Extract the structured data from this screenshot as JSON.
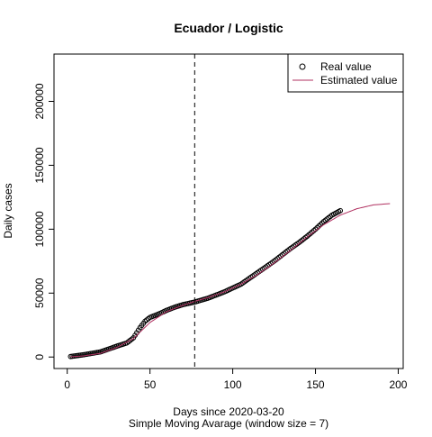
{
  "chart_data": {
    "type": "scatter",
    "title": "Ecuador / Logistic",
    "xlabel": "Days since 2020-03-20",
    "xlabel2": "Simple Moving Avarage (window size = 7)",
    "ylabel": "Daily cases",
    "xlim": [
      -8,
      203
    ],
    "ylim": [
      -9000,
      237000
    ],
    "xticks": [
      0,
      50,
      100,
      150,
      200
    ],
    "yticks": [
      0,
      50000,
      100000,
      150000,
      200000
    ],
    "vline_x": 77,
    "legend": {
      "position": "top-right",
      "entries": [
        {
          "label": "Real value",
          "symbol": "circle",
          "color": "#000000"
        },
        {
          "label": "Estimated value",
          "symbol": "line",
          "color": "#b03060"
        }
      ]
    },
    "series": [
      {
        "name": "Real value",
        "kind": "points",
        "color": "#000000",
        "x": [
          2,
          10,
          20,
          30,
          36,
          40,
          44,
          47,
          50,
          55,
          60,
          65,
          70,
          77,
          85,
          90,
          95,
          100,
          105,
          110,
          115,
          120,
          125,
          130,
          135,
          140,
          145,
          150,
          155,
          160,
          165
        ],
        "y": [
          400,
          1800,
          4000,
          8500,
          11000,
          15000,
          23000,
          28000,
          31000,
          33500,
          36500,
          39000,
          41000,
          43000,
          46000,
          48500,
          51000,
          54000,
          57000,
          61500,
          66000,
          70500,
          75000,
          80000,
          85000,
          89500,
          94500,
          100000,
          106000,
          111000,
          114500
        ]
      },
      {
        "name": "Estimated value",
        "kind": "line",
        "color": "#b03060",
        "x": [
          2,
          10,
          20,
          30,
          40,
          50,
          60,
          70,
          77,
          85,
          95,
          105,
          115,
          125,
          135,
          145,
          155,
          165,
          175,
          185,
          195
        ],
        "y": [
          200,
          900,
          2800,
          7500,
          14500,
          27000,
          35500,
          40500,
          43500,
          46500,
          51000,
          57000,
          64500,
          73500,
          83500,
          94000,
          103500,
          111000,
          116000,
          119000,
          120000
        ]
      }
    ]
  }
}
